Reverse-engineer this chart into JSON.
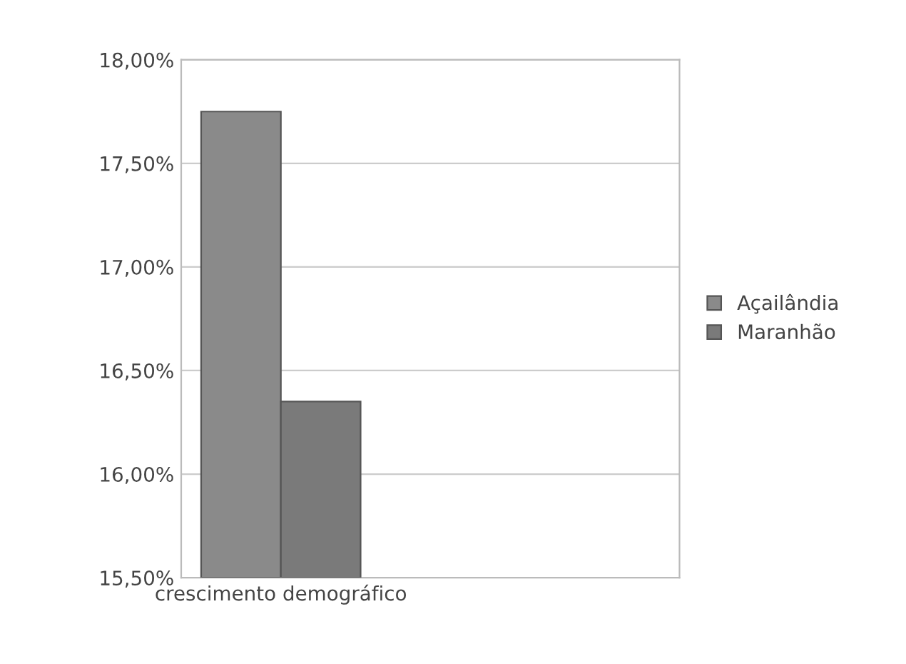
{
  "chart_data": {
    "type": "bar",
    "categories": [
      "crescimento demográfico"
    ],
    "series": [
      {
        "name": "Açailândia",
        "color": "#8a8a8a",
        "values": [
          17.75
        ]
      },
      {
        "name": "Maranhão",
        "color": "#7a7a7a",
        "values": [
          16.35
        ]
      }
    ],
    "ylim": [
      15.5,
      18.0
    ],
    "yticks": [
      {
        "value": 15.5,
        "label": "15,50%"
      },
      {
        "value": 16.0,
        "label": "16,00%"
      },
      {
        "value": 16.5,
        "label": "16,50%"
      },
      {
        "value": 17.0,
        "label": "17,00%"
      },
      {
        "value": 17.5,
        "label": "17,50%"
      },
      {
        "value": 18.0,
        "label": "18,00%"
      }
    ],
    "grid": "y",
    "legend": "right"
  }
}
